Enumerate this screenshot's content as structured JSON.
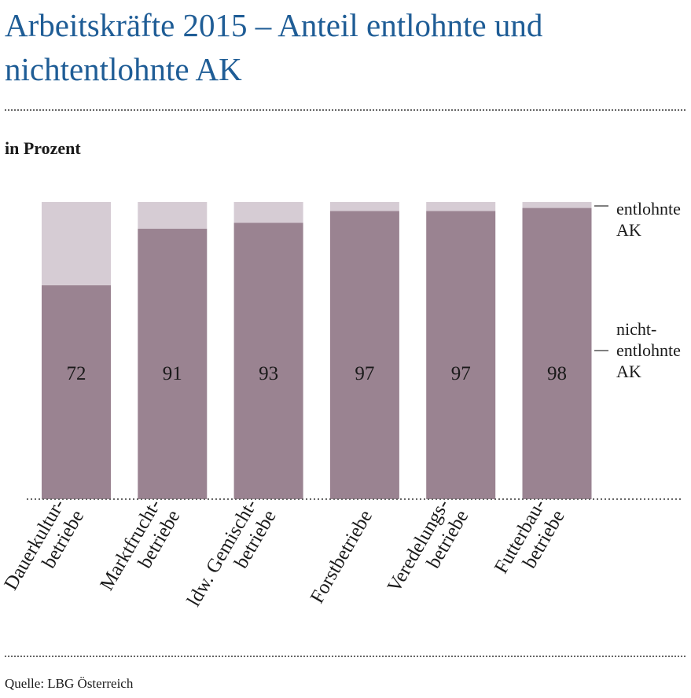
{
  "title": "Arbeitskräfte 2015 – Anteil entlohnte und nichtentlohnte AK",
  "unit_label": "in Prozent",
  "source": "Quelle: LBG Österreich",
  "colors": {
    "title": "#1f5d96",
    "nichtentlohnte": "#9a8391",
    "entlohnte": "#d6ccd4"
  },
  "chart_data": {
    "type": "bar",
    "stacked": true,
    "categories": [
      [
        "Dauerkultur-",
        "betriebe"
      ],
      [
        "Marktfrucht-",
        "betriebe"
      ],
      [
        "ldw. Gemischt-",
        "betriebe"
      ],
      [
        "Forstbetriebe"
      ],
      [
        "Veredelungs-",
        "betriebe"
      ],
      [
        "Futterbau-",
        "betriebe"
      ]
    ],
    "ylim": [
      0,
      100
    ],
    "series": [
      {
        "name": "nicht-entlohnte AK",
        "legend_lines": [
          "nicht-",
          "entlohnte",
          "AK"
        ],
        "values": [
          72,
          91,
          93,
          97,
          97,
          98
        ],
        "show_labels": true
      },
      {
        "name": "entlohnte AK",
        "legend_lines": [
          "entlohnte",
          "AK"
        ],
        "values": [
          28,
          9,
          7,
          3,
          3,
          2
        ],
        "show_labels": false
      }
    ],
    "legend": "right"
  }
}
